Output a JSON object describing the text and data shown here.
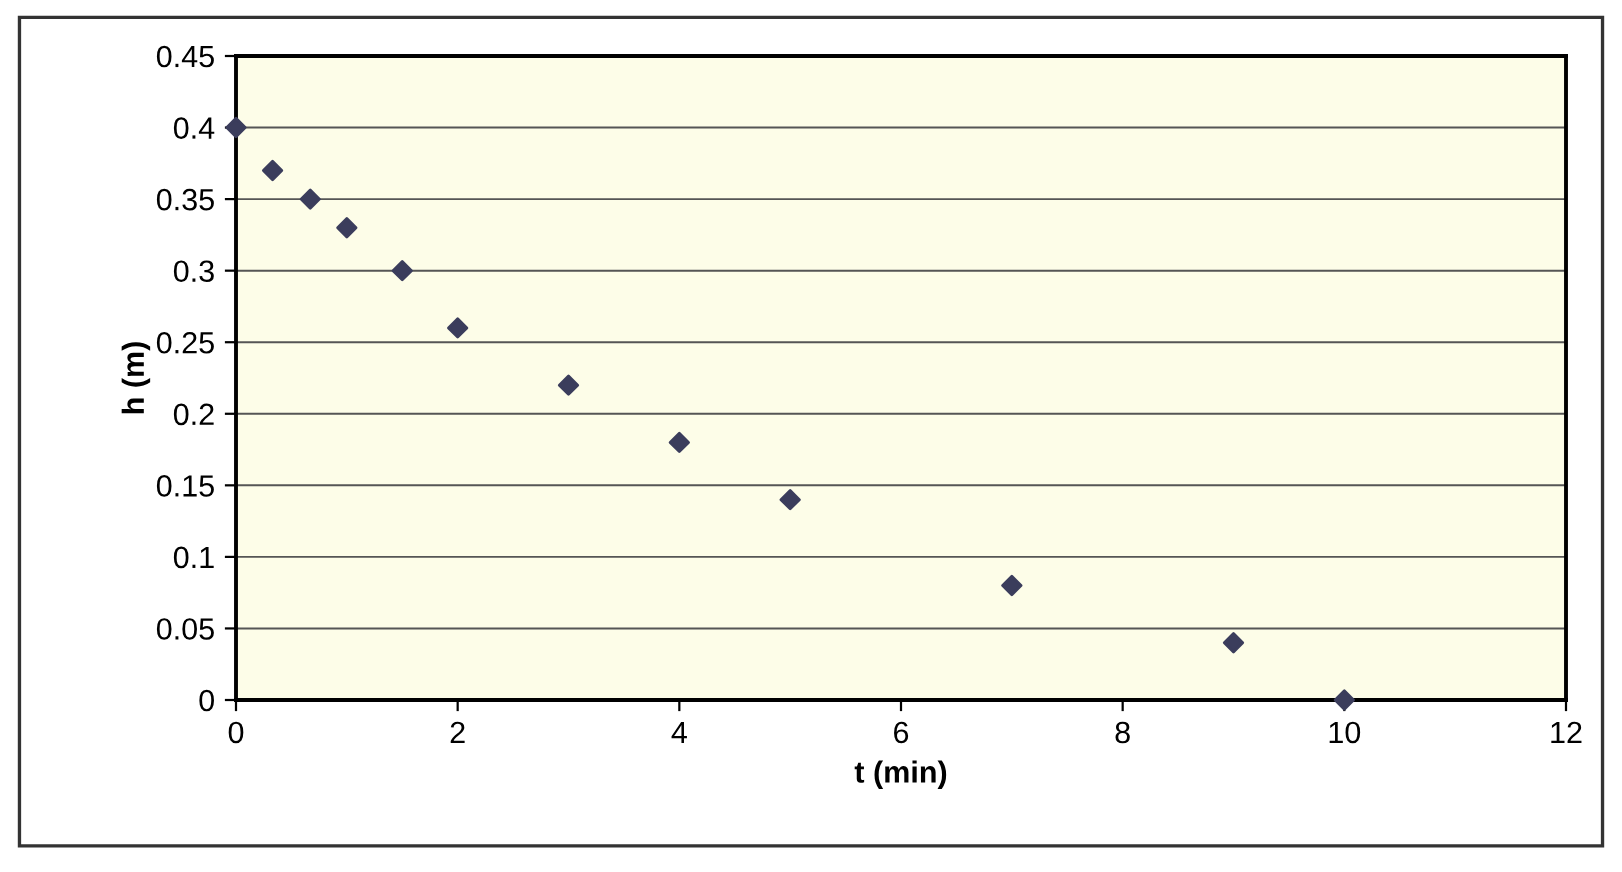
{
  "chart_data": {
    "type": "scatter",
    "xlabel": "t (min)",
    "ylabel": "h (m)",
    "x": [
      0,
      0.33,
      0.67,
      1,
      1.5,
      2,
      3,
      4,
      5,
      7,
      9,
      10
    ],
    "series": [
      {
        "color": "#3b3d5c",
        "values": [
          0.4,
          0.37,
          0.35,
          0.33,
          0.3,
          0.26,
          0.22,
          0.18,
          0.14,
          0.08,
          0.04,
          0
        ]
      }
    ],
    "xlim": [
      0,
      12
    ],
    "xticks": [
      0,
      2,
      4,
      6,
      8,
      10,
      12
    ],
    "ylim": [
      0,
      0.45
    ],
    "yticks": [
      0,
      0.05,
      0.1,
      0.15,
      0.2,
      0.25,
      0.3,
      0.35,
      0.4,
      0.45
    ],
    "grid": "y",
    "marker": "diamond"
  }
}
